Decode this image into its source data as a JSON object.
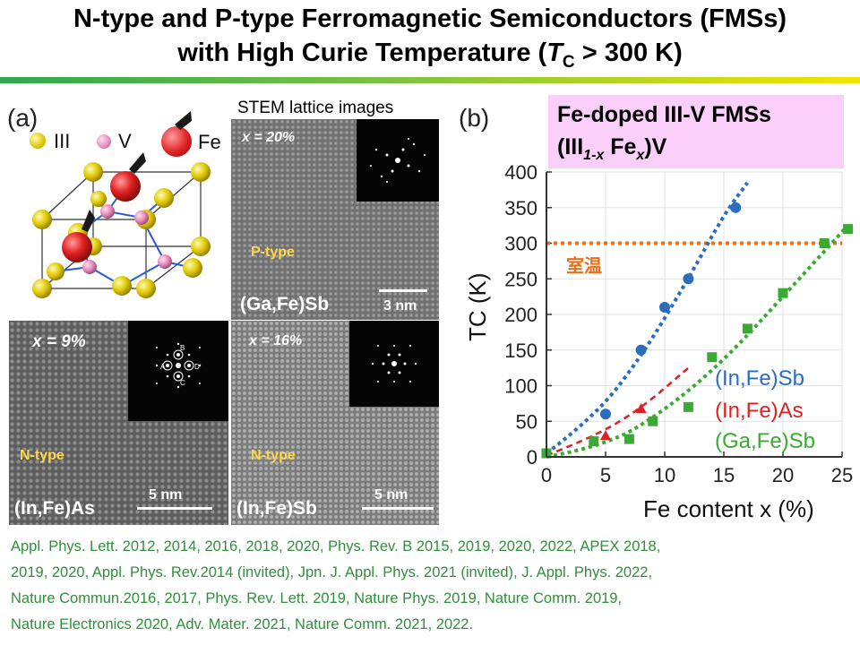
{
  "title": {
    "line1": "N-type and P-type Ferromagnetic Semiconductors (FMSs)",
    "line2_prefix": "with High Curie Temperature (",
    "line2_T": "T",
    "line2_sub": "C",
    "line2_suffix": " > 300 K)"
  },
  "panel_a": {
    "label": "(a)",
    "legend": {
      "iii": "III",
      "v": "V",
      "fe": "Fe"
    },
    "stem_caption": "STEM lattice images",
    "images": [
      {
        "x_label": "x = 20%",
        "type": "P-type",
        "material": "(Ga,Fe)Sb",
        "scale": "3 nm"
      },
      {
        "x_label": "x = 9%",
        "type": "N-type",
        "material": "(In,Fe)As",
        "scale": "5 nm",
        "spot_labels": [
          "B",
          "A",
          "D",
          "C"
        ]
      },
      {
        "x_label": "x = 16%",
        "type": "N-type",
        "material": "(In,Fe)Sb",
        "scale": "5 nm"
      }
    ]
  },
  "panel_b": {
    "label": "(b)",
    "box_title": "Fe-doped III-V FMSs",
    "formula": {
      "open": "(III",
      "sub": "1-x",
      "mid": " Fe",
      "x": "x",
      "close": ")V"
    },
    "room_temp_label": "室温",
    "colors": {
      "in_fe_sb": "#2a6ebb",
      "in_fe_as": "#e02020",
      "ga_fe_sb": "#3aaa35",
      "room_temp": "#e8701a"
    }
  },
  "chart_data": {
    "type": "scatter",
    "xlabel": "Fe content x (%)",
    "ylabel": "TC (K)",
    "xlim": [
      0,
      25
    ],
    "ylim": [
      0,
      400
    ],
    "x_ticks": [
      0,
      5,
      10,
      15,
      20,
      25
    ],
    "y_ticks": [
      0,
      50,
      100,
      150,
      200,
      250,
      300,
      350,
      400
    ],
    "legend_position": "bottom-right",
    "room_temperature_K": 300,
    "series": [
      {
        "name": "(In,Fe)Sb",
        "marker": "circle",
        "points": [
          [
            5,
            60
          ],
          [
            8,
            150
          ],
          [
            10,
            210
          ],
          [
            12,
            250
          ],
          [
            16,
            350
          ]
        ],
        "trend": [
          [
            0,
            5
          ],
          [
            4,
            55
          ],
          [
            8,
            140
          ],
          [
            12,
            250
          ],
          [
            15,
            340
          ],
          [
            17,
            385
          ]
        ]
      },
      {
        "name": "(In,Fe)As",
        "marker": "triangle",
        "points": [
          [
            5,
            30
          ],
          [
            8,
            68
          ]
        ],
        "trend": [
          [
            0,
            2
          ],
          [
            4,
            28
          ],
          [
            8,
            68
          ],
          [
            12,
            125
          ]
        ]
      },
      {
        "name": "(Ga,Fe)Sb",
        "marker": "square",
        "points": [
          [
            0,
            5
          ],
          [
            4,
            22
          ],
          [
            7,
            25
          ],
          [
            9,
            50
          ],
          [
            12,
            70
          ],
          [
            14,
            140
          ],
          [
            17,
            180
          ],
          [
            20,
            230
          ],
          [
            23.5,
            300
          ],
          [
            25.5,
            320
          ]
        ],
        "trend": [
          [
            0,
            0
          ],
          [
            5,
            15
          ],
          [
            10,
            65
          ],
          [
            15,
            135
          ],
          [
            20,
            225
          ],
          [
            25.5,
            325
          ]
        ]
      }
    ]
  },
  "references": [
    "Appl. Phys. Lett. 2012, 2014, 2016, 2018, 2020, Phys. Rev. B 2015, 2019, 2020, 2022, APEX 2018,",
    "2019, 2020, Appl. Phys. Rev.2014 (invited), Jpn. J. Appl. Phys. 2021 (invited), J. Appl. Phys. 2022,",
    "Nature Commun.2016, 2017, Phys. Rev. Lett. 2019, Nature Phys. 2019, Nature Comm. 2019,",
    "Nature Electronics 2020, Adv. Mater. 2021, Nature Comm. 2021, 2022."
  ]
}
